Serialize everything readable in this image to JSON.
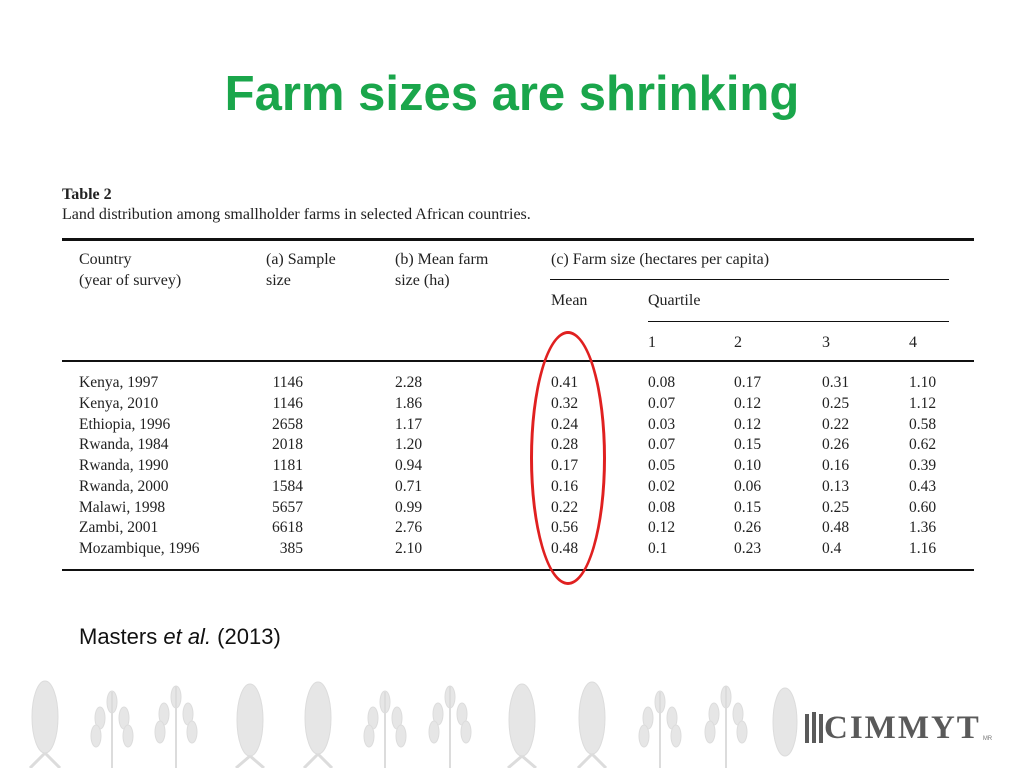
{
  "slide": {
    "title": "Farm sizes are shrinking",
    "citation_author": "Masters ",
    "citation_etal": "et al.",
    "citation_year": " (2013)"
  },
  "table": {
    "caption": "Table 2",
    "description": "Land distribution among smallholder farms in selected African countries.",
    "headers": {
      "country_line1": "Country",
      "country_line2": "(year of survey)",
      "sample_line1": "(a) Sample",
      "sample_line2": "size",
      "meanfarm_line1": "(b) Mean farm",
      "meanfarm_line2": "size (ha)",
      "farmsize": "(c) Farm size (hectares per capita)",
      "mean": "Mean",
      "quartile": "Quartile",
      "q1": "1",
      "q2": "2",
      "q3": "3",
      "q4": "4"
    },
    "rows": [
      [
        "Kenya, 1997",
        "1146",
        "2.28",
        "0.41",
        "0.08",
        "0.17",
        "0.31",
        "1.10"
      ],
      [
        "Kenya, 2010",
        "1146",
        "1.86",
        "0.32",
        "0.07",
        "0.12",
        "0.25",
        "1.12"
      ],
      [
        "Ethiopia, 1996",
        "2658",
        "1.17",
        "0.24",
        "0.03",
        "0.12",
        "0.22",
        "0.58"
      ],
      [
        "Rwanda, 1984",
        "2018",
        "1.20",
        "0.28",
        "0.07",
        "0.15",
        "0.26",
        "0.62"
      ],
      [
        "Rwanda, 1990",
        "1181",
        "0.94",
        "0.17",
        "0.05",
        "0.10",
        "0.16",
        "0.39"
      ],
      [
        "Rwanda, 2000",
        "1584",
        "0.71",
        "0.16",
        "0.02",
        "0.06",
        "0.13",
        "0.43"
      ],
      [
        "Malawi, 1998",
        "5657",
        "0.99",
        "0.22",
        "0.08",
        "0.15",
        "0.25",
        "0.60"
      ],
      [
        "Zambi, 2001",
        "6618",
        "2.76",
        "0.56",
        "0.12",
        "0.26",
        "0.48",
        "1.36"
      ],
      [
        "Mozambique, 1996",
        "385",
        "2.10",
        "0.48",
        "0.1",
        "0.23",
        "0.4",
        "1.16"
      ]
    ]
  },
  "logo": {
    "text": "CIMMYT",
    "mark": "MR"
  },
  "colors": {
    "title": "#1aa64b",
    "highlight_oval": "#e02020",
    "decoration": "#e3e3e3"
  }
}
